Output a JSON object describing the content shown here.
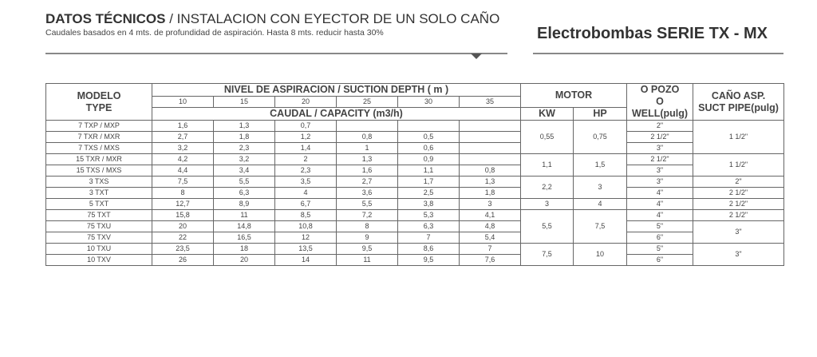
{
  "header": {
    "title_bold": "DATOS TÉCNICOS",
    "title_rest": "/ INSTALACION CON EYECTOR DE UN SOLO CAÑO",
    "subtitle": "Caudales basados en 4 mts. de profundidad de aspiración.  Hasta 8 mts. reducir hasta 30%",
    "brand": "Electrobombas SERIE TX - MX"
  },
  "table": {
    "head": {
      "model": [
        "MODELO",
        "TYPE"
      ],
      "depth_title": "NIVEL  DE ASPIRACION / SUCTION DEPTH ( m )",
      "depths": [
        10,
        15,
        20,
        25,
        30,
        35
      ],
      "capacity": "CAUDAL / CAPACITY (m3/h)",
      "motor": "MOTOR",
      "kw": "KW",
      "hp": "HP",
      "well": [
        "O POZO",
        "O WELL"
      ],
      "well_unit": "(pulg)",
      "pipe": [
        "CAÑO ASP.",
        "SUCT PIPE"
      ],
      "pipe_unit": "(pulg)"
    },
    "rows": [
      {
        "model": "7 TXP / MXP",
        "flows": [
          "1,6",
          "1,3",
          "0,7",
          null,
          null,
          null
        ],
        "well": "2\""
      },
      {
        "model": "7 TXR / MXR",
        "flows": [
          "2,7",
          "1,8",
          "1,2",
          "0,8",
          "0,5",
          null
        ],
        "well": "2 1/2\""
      },
      {
        "model": "7 TXS / MXS",
        "flows": [
          "3,2",
          "2,3",
          "1,4",
          "1",
          "0,6",
          null
        ],
        "well": "3\""
      },
      {
        "model": "15 TXR / MXR",
        "flows": [
          "4,2",
          "3,2",
          "2",
          "1,3",
          "0,9",
          null
        ],
        "well": "2 1/2\""
      },
      {
        "model": "15 TXS / MXS",
        "flows": [
          "4,4",
          "3,4",
          "2,3",
          "1,6",
          "1,1",
          "0,8"
        ],
        "well": "3\""
      },
      {
        "model": "3 TXS",
        "flows": [
          "7,5",
          "5,5",
          "3,5",
          "2,7",
          "1,7",
          "1,3"
        ],
        "well": "3\""
      },
      {
        "model": "3 TXT",
        "flows": [
          "8",
          "6,3",
          "4",
          "3,6",
          "2,5",
          "1,8"
        ],
        "well": "4\""
      },
      {
        "model": "5 TXT",
        "flows": [
          "12,7",
          "8,9",
          "6,7",
          "5,5",
          "3,8",
          "3"
        ],
        "well": "4\""
      },
      {
        "model": "75 TXT",
        "flows": [
          "15,8",
          "11",
          "8,5",
          "7,2",
          "5,3",
          "4,1"
        ],
        "well": "4\""
      },
      {
        "model": "75 TXU",
        "flows": [
          "20",
          "14,8",
          "10,8",
          "8",
          "6,3",
          "4,8"
        ],
        "well": "5\""
      },
      {
        "model": "75 TXV",
        "flows": [
          "22",
          "16,5",
          "12",
          "9",
          "7",
          "5,4"
        ],
        "well": "6\""
      },
      {
        "model": "10 TXU",
        "flows": [
          "23,5",
          "18",
          "13,5",
          "9,5",
          "8,6",
          "7"
        ],
        "well": "5\""
      },
      {
        "model": "10 TXV",
        "flows": [
          "26",
          "20",
          "14",
          "11",
          "9,5",
          "7,6"
        ],
        "well": "6\""
      }
    ],
    "motor": [
      {
        "kw": "0,55",
        "hp": "0,75"
      },
      {
        "kw": "1,1",
        "hp": "1,5"
      },
      {
        "kw": "2,2",
        "hp": "3"
      },
      {
        "kw": "3",
        "hp": "4"
      },
      {
        "kw": "5,5",
        "hp": "7,5"
      },
      {
        "kw": "7,5",
        "hp": "10"
      }
    ],
    "pipe": [
      "1 1/2\"",
      "1 1/2\"",
      "2\"",
      "2 1/2\"",
      "2 1/2\"",
      "2 1/2\"",
      "3\"",
      "3\""
    ]
  }
}
